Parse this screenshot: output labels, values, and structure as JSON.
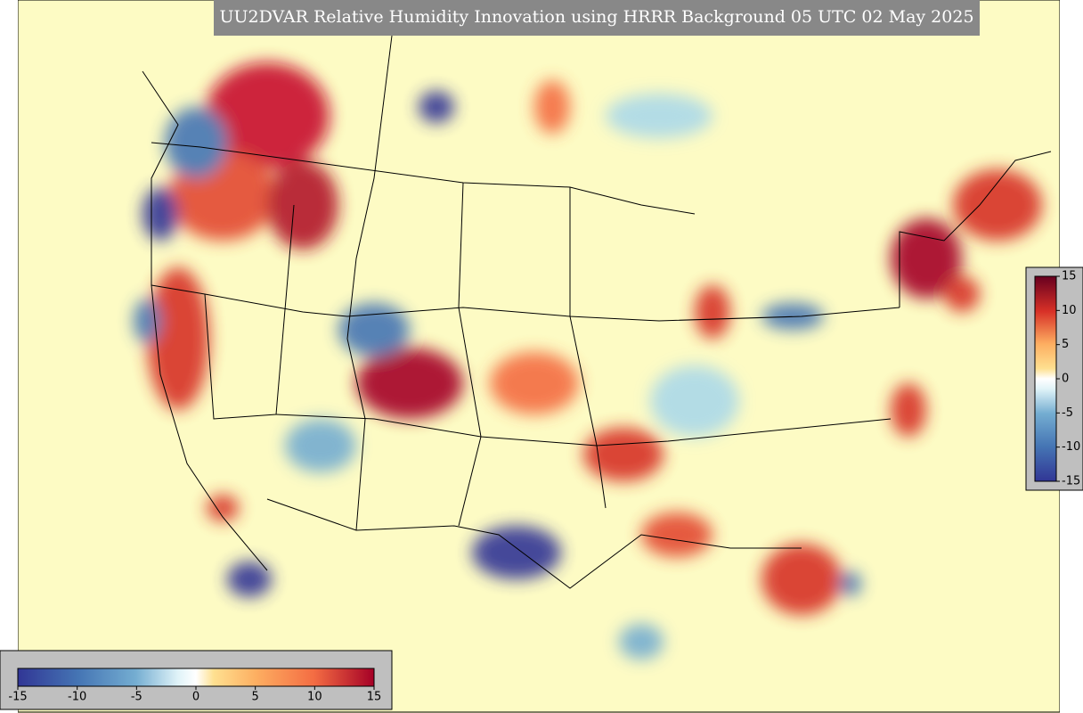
{
  "title": "UU2DVAR Relative Humidity Innovation using HRRR Background 05 UTC 02 May 2025",
  "colorbar_right": {
    "lim": [
      -15,
      15
    ],
    "ticks": [
      15,
      10,
      5,
      0,
      -5,
      -10,
      -15
    ]
  },
  "colorbar_bottom": {
    "lim": [
      -15,
      15
    ],
    "ticks": [
      -15,
      -10,
      -5,
      0,
      5,
      10,
      15
    ]
  }
}
